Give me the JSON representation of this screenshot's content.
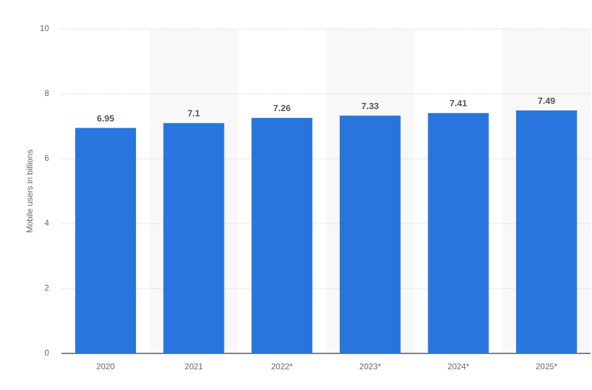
{
  "chart_data": {
    "type": "bar",
    "y_axis_label": "Mobile users in billions",
    "categories": [
      "2020",
      "2021",
      "2022*",
      "2023*",
      "2024*",
      "2025*"
    ],
    "values": [
      6.95,
      7.1,
      7.26,
      7.33,
      7.41,
      7.49
    ],
    "color": "#2876dd",
    "ylim": [
      0,
      10
    ],
    "yticks": [
      0,
      2,
      4,
      6,
      8,
      10
    ],
    "grid": true
  }
}
